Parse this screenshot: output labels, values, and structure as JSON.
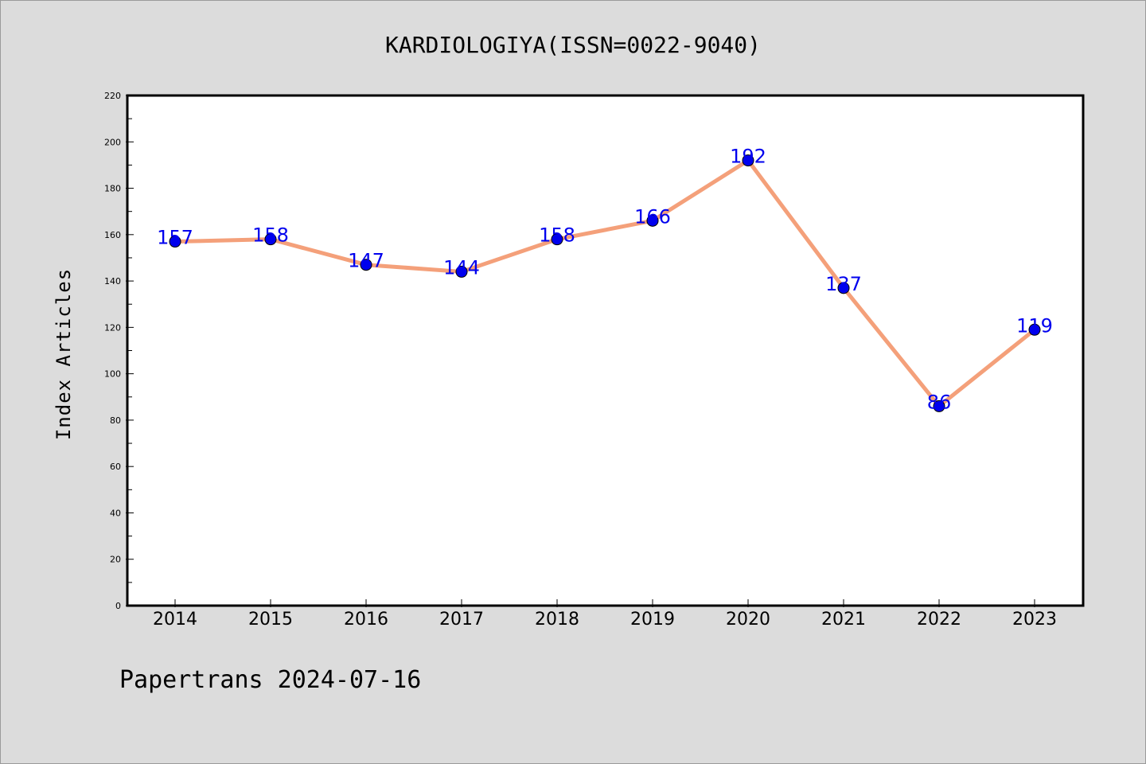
{
  "chart_data": {
    "type": "line",
    "title": "KARDIOLOGIYA(ISSN=0022-9040)",
    "ylabel": "Index Articles",
    "xlabel": "",
    "categories": [
      "2014",
      "2015",
      "2016",
      "2017",
      "2018",
      "2019",
      "2020",
      "2021",
      "2022",
      "2023"
    ],
    "series": [
      {
        "values": [
          157,
          158,
          147,
          144,
          158,
          166,
          192,
          137,
          86,
          119
        ]
      }
    ],
    "data_labels": [
      "157",
      "158",
      "147",
      "144",
      "158",
      "166",
      "192",
      "137",
      "86",
      "119"
    ],
    "yticks": [
      "0",
      "20",
      "40",
      "60",
      "80",
      "100",
      "120",
      "140",
      "160",
      "180",
      "200",
      "220"
    ],
    "ylim": [
      0,
      220
    ],
    "grid": false,
    "colors": {
      "line": "#f4a07a",
      "marker": "#0000ee",
      "label": "#0000ee",
      "background": "#dcdcdc",
      "plot": "#ffffff"
    }
  },
  "footer": {
    "text": "Papertrans 2024-07-16"
  }
}
